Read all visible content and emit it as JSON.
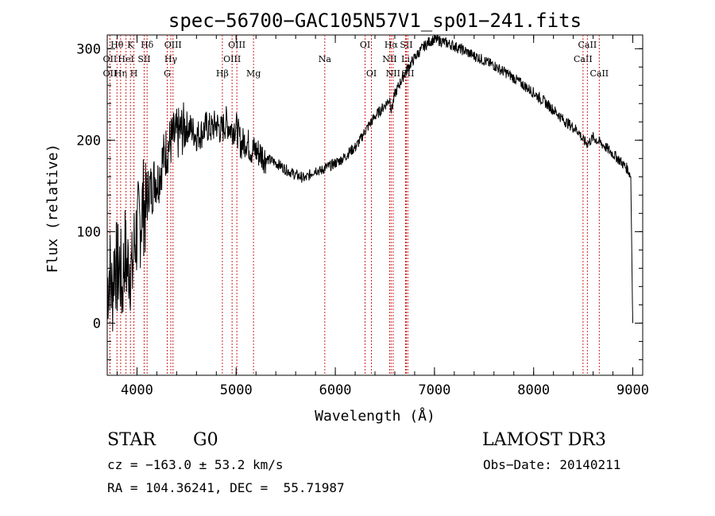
{
  "chart_data": {
    "type": "line",
    "title": "spec−56700−GAC105N57V1_sp01−241.fits",
    "xlabel": "Wavelength (Å)",
    "ylabel": "Flux (relative)",
    "xlim": [
      3700,
      9100
    ],
    "ylim": [
      -57,
      315
    ],
    "x_ticks": [
      4000,
      5000,
      6000,
      7000,
      8000,
      9000
    ],
    "y_ticks": [
      0,
      100,
      200,
      300
    ],
    "x_minor_step": 200,
    "y_minor_step": 20,
    "series": [
      {
        "name": "flux",
        "x": [
          3700,
          3725,
          3750,
          3775,
          3800,
          3825,
          3850,
          3875,
          3900,
          3925,
          3950,
          3975,
          4000,
          4030,
          4060,
          4090,
          4120,
          4150,
          4180,
          4210,
          4250,
          4300,
          4350,
          4400,
          4450,
          4500,
          4550,
          4600,
          4650,
          4700,
          4750,
          4800,
          4850,
          4900,
          4950,
          5000,
          5050,
          5100,
          5150,
          5200,
          5250,
          5300,
          5350,
          5400,
          5450,
          5500,
          5550,
          5600,
          5650,
          5700,
          5750,
          5800,
          5850,
          5900,
          5950,
          6000,
          6050,
          6100,
          6150,
          6200,
          6250,
          6300,
          6350,
          6400,
          6450,
          6500,
          6550,
          6565,
          6600,
          6650,
          6700,
          6750,
          6800,
          6850,
          6900,
          6950,
          7000,
          7050,
          7100,
          7150,
          7200,
          7250,
          7300,
          7350,
          7400,
          7450,
          7500,
          7550,
          7600,
          7650,
          7700,
          7750,
          7800,
          7850,
          7900,
          7950,
          8000,
          8050,
          8100,
          8150,
          8200,
          8250,
          8300,
          8350,
          8400,
          8450,
          8498,
          8542,
          8600,
          8662,
          8700,
          8750,
          8800,
          8850,
          8900,
          8950,
          8980,
          9000
        ],
        "y": [
          40,
          60,
          30,
          75,
          55,
          65,
          35,
          80,
          60,
          70,
          50,
          90,
          100,
          110,
          130,
          120,
          150,
          145,
          160,
          155,
          175,
          190,
          200,
          205,
          210,
          215,
          212,
          205,
          208,
          215,
          212,
          218,
          210,
          220,
          212,
          215,
          195,
          200,
          190,
          188,
          185,
          180,
          178,
          175,
          172,
          168,
          165,
          162,
          160,
          158,
          163,
          168,
          166,
          170,
          172,
          175,
          178,
          182,
          188,
          192,
          200,
          210,
          218,
          226,
          232,
          238,
          245,
          232,
          250,
          262,
          273,
          282,
          290,
          297,
          303,
          308,
          310,
          309,
          307,
          305,
          303,
          300,
          298,
          295,
          292,
          290,
          287,
          284,
          282,
          278,
          275,
          272,
          268,
          264,
          260,
          256,
          252,
          247,
          243,
          238,
          233,
          228,
          222,
          218,
          214,
          210,
          200,
          196,
          203,
          198,
          195,
          190,
          185,
          180,
          174,
          168,
          160,
          0
        ]
      }
    ],
    "lines": [
      {
        "name": "OII",
        "wave": 3727,
        "row": 3
      },
      {
        "name": "OII",
        "wave": 3727,
        "row": 2
      },
      {
        "name": "Hθ",
        "wave": 3798,
        "row": 1
      },
      {
        "name": "Hη",
        "wave": 3835,
        "row": 3
      },
      {
        "name": "HeI",
        "wave": 3889,
        "row": 2
      },
      {
        "name": "K",
        "wave": 3934,
        "row": 1
      },
      {
        "name": "H",
        "wave": 3969,
        "row": 3
      },
      {
        "name": "SII",
        "wave": 4072,
        "row": 2
      },
      {
        "name": "Hδ",
        "wave": 4102,
        "row": 1
      },
      {
        "name": "G",
        "wave": 4305,
        "row": 3
      },
      {
        "name": "Hγ",
        "wave": 4341,
        "row": 2
      },
      {
        "name": "OIII",
        "wave": 4363,
        "row": 1
      },
      {
        "name": "Hβ",
        "wave": 4861,
        "row": 3
      },
      {
        "name": "OIII",
        "wave": 4959,
        "row": 2
      },
      {
        "name": "OIII",
        "wave": 5007,
        "row": 1
      },
      {
        "name": "Mg",
        "wave": 5175,
        "row": 3
      },
      {
        "name": "Na",
        "wave": 5894,
        "row": 2
      },
      {
        "name": "OI",
        "wave": 6300,
        "row": 1
      },
      {
        "name": "OI",
        "wave": 6364,
        "row": 3
      },
      {
        "name": "NII",
        "wave": 6548,
        "row": 2
      },
      {
        "name": "Hα",
        "wave": 6563,
        "row": 1
      },
      {
        "name": "NII",
        "wave": 6583,
        "row": 3
      },
      {
        "name": "SII",
        "wave": 6716,
        "row": 1
      },
      {
        "name": "Li",
        "wave": 6708,
        "row": 2
      },
      {
        "name": "SII",
        "wave": 6731,
        "row": 3
      },
      {
        "name": "CaII",
        "wave": 8498,
        "row": 2
      },
      {
        "name": "CaII",
        "wave": 8542,
        "row": 1
      },
      {
        "name": "CaII",
        "wave": 8662,
        "row": 3
      }
    ]
  },
  "info": {
    "object_class": "STAR",
    "subclass": "G0",
    "survey": "LAMOST DR3",
    "cz": "cz = −163.0 ± 53.2 km/s",
    "obs_date": "Obs−Date: 20140211",
    "coords": "RA = 104.36241, DEC =  55.71987"
  }
}
